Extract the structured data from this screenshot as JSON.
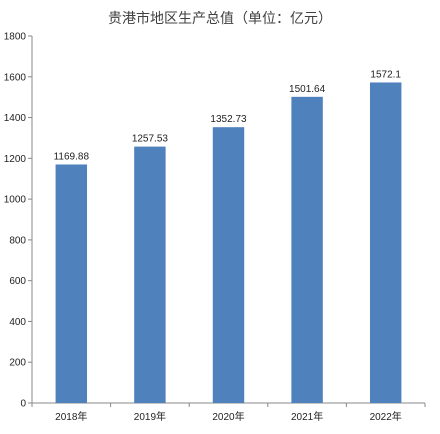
{
  "chart_data": {
    "type": "bar",
    "title": "贵港市地区生产总值（单位：亿元）",
    "categories": [
      "2018年",
      "2019年",
      "2020年",
      "2021年",
      "2022年"
    ],
    "values": [
      1169.88,
      1257.53,
      1352.73,
      1501.64,
      1572.1
    ],
    "value_labels": [
      "1169.88",
      "1257.53",
      "1352.73",
      "1501.64",
      "1572.1"
    ],
    "ylim": [
      0,
      1800
    ],
    "yticks": [
      0,
      200,
      400,
      600,
      800,
      1000,
      1200,
      1400,
      1600,
      1800
    ],
    "xlabel": "",
    "ylabel": "",
    "grid": false,
    "colors": {
      "bar": "#4F81BD",
      "axis": "#888888"
    }
  }
}
